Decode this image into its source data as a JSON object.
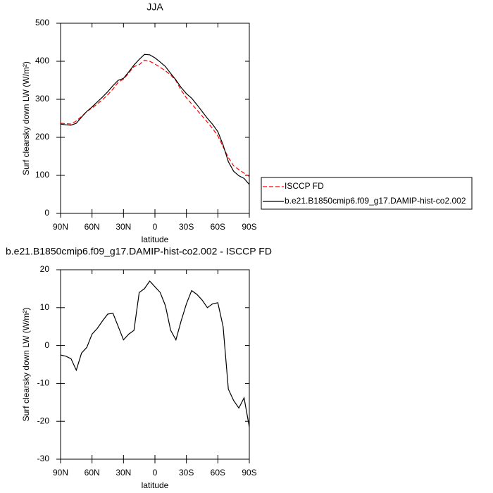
{
  "chart_data": [
    {
      "type": "line",
      "title": "JJA",
      "xlabel": "latitude",
      "ylabel": "Surf clearsky down LW (W/m²)",
      "x": [
        90,
        85,
        80,
        75,
        70,
        65,
        60,
        55,
        50,
        45,
        40,
        35,
        30,
        25,
        20,
        15,
        10,
        5,
        0,
        -5,
        -10,
        -15,
        -20,
        -25,
        -30,
        -35,
        -40,
        -45,
        -50,
        -55,
        -60,
        -65,
        -70,
        -75,
        -80,
        -85,
        -90
      ],
      "series": [
        {
          "name": "ISCCP FD",
          "color": "#ff0000",
          "dash": true,
          "values": [
            237,
            236,
            235,
            243,
            255,
            268,
            277,
            288,
            299,
            312,
            327,
            345,
            353,
            369,
            386,
            391,
            403,
            400,
            393,
            384,
            375,
            364,
            349,
            324,
            304,
            288,
            272,
            256,
            240,
            223,
            204,
            175,
            147,
            125,
            115,
            106,
            97
          ]
        },
        {
          "name": "b.e21.B1850cmip6.f09_g17.DAMIP-hist-co2.002",
          "color": "#000000",
          "dash": false,
          "values": [
            235,
            233,
            232,
            237,
            253,
            268,
            280,
            293,
            306,
            320,
            336,
            350,
            355,
            372,
            390,
            405,
            418,
            417,
            409,
            398,
            386,
            368,
            351,
            331,
            315,
            303,
            286,
            268,
            250,
            234,
            215,
            180,
            136,
            111,
            99,
            92,
            76
          ]
        }
      ],
      "xlim": [
        90,
        -90
      ],
      "xticks": [
        {
          "value": 90,
          "label": "90N"
        },
        {
          "value": 60,
          "label": "60N"
        },
        {
          "value": 30,
          "label": "30N"
        },
        0,
        {
          "value": -30,
          "label": "30S"
        },
        {
          "value": -60,
          "label": "60S"
        },
        {
          "value": -90,
          "label": "90S"
        }
      ],
      "ylim": [
        0,
        500
      ],
      "yticks": [
        0,
        100,
        200,
        300,
        400,
        500
      ],
      "legend": "right"
    },
    {
      "type": "line",
      "title": "b.e21.B1850cmip6.f09_g17.DAMIP-hist-co2.002 - ISCCP FD",
      "xlabel": "latitude",
      "ylabel": "Surf clearsky down LW (W/m²)",
      "x": [
        90,
        85,
        80,
        75,
        70,
        65,
        60,
        55,
        50,
        45,
        40,
        35,
        30,
        25,
        20,
        15,
        10,
        5,
        0,
        -5,
        -10,
        -15,
        -20,
        -25,
        -30,
        -35,
        -40,
        -45,
        -50,
        -55,
        -60,
        -65,
        -70,
        -75,
        -80,
        -85,
        -90
      ],
      "series": [
        {
          "color": "#000000",
          "dash": false,
          "values": [
            -2.5,
            -2.8,
            -3.5,
            -6.5,
            -2,
            -0.5,
            3,
            4.5,
            6.5,
            8.3,
            8.5,
            5,
            1.5,
            3,
            4,
            14,
            15,
            17,
            15.5,
            14,
            10.5,
            4,
            1.5,
            6.5,
            11,
            14.5,
            13.5,
            12,
            10,
            11,
            11.3,
            5,
            -11.5,
            -14.5,
            -16.5,
            -13.8,
            -21.5
          ]
        }
      ],
      "xlim": [
        90,
        -90
      ],
      "xticks": [
        {
          "value": 90,
          "label": "90N"
        },
        {
          "value": 60,
          "label": "60N"
        },
        {
          "value": 30,
          "label": "30N"
        },
        0,
        {
          "value": -30,
          "label": "30S"
        },
        {
          "value": -60,
          "label": "60S"
        },
        {
          "value": -90,
          "label": "90S"
        }
      ],
      "ylim": [
        -30,
        20
      ],
      "yticks": [
        -30,
        -20,
        -10,
        0,
        10,
        20
      ]
    }
  ]
}
